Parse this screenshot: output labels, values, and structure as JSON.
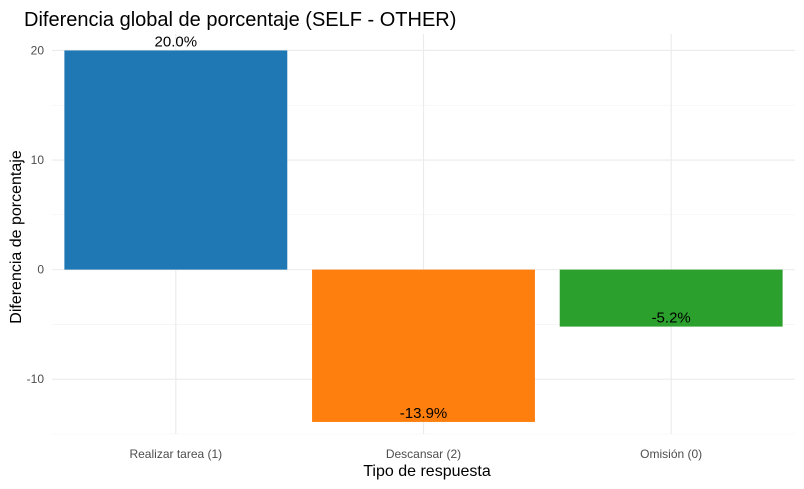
{
  "chart_data": {
    "type": "bar",
    "title": "Diferencia global de porcentaje (SELF - OTHER)",
    "xlabel": "Tipo de respuesta",
    "ylabel": "Diferencia de porcentaje",
    "categories": [
      "Realizar tarea (1)",
      "Descansar (2)",
      "Omisión (0)"
    ],
    "values": [
      20.0,
      -13.9,
      -5.2
    ],
    "data_labels": [
      "20.0%",
      "-13.9%",
      "-5.2%"
    ],
    "colors": [
      "#1f77b4",
      "#ff7f0e",
      "#2ca02c"
    ],
    "ylim": [
      -15,
      21.5
    ],
    "yticks": [
      -10,
      0,
      10,
      20
    ],
    "ytick_labels": [
      "-10",
      "0",
      "10",
      "20"
    ],
    "grid": true,
    "legend": "none"
  }
}
